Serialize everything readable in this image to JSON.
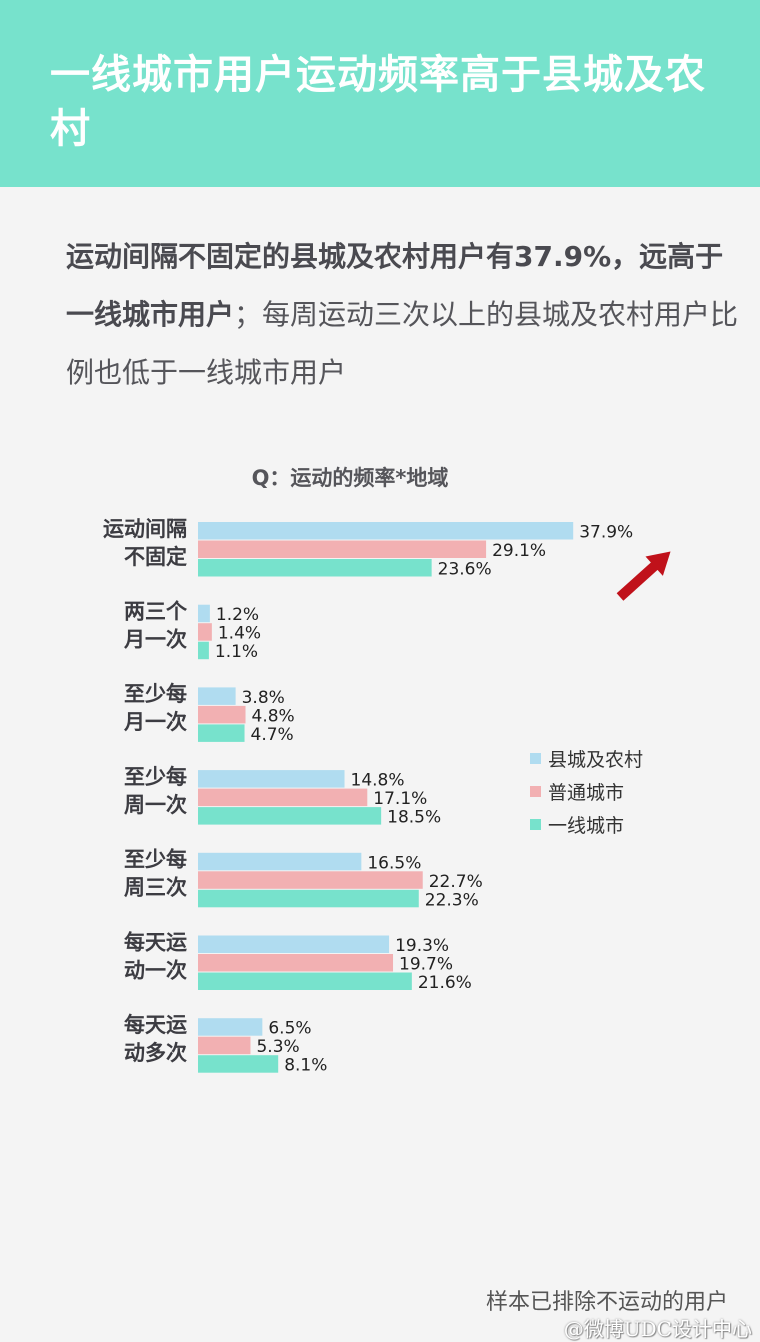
{
  "header": {
    "title": "一线城市用户运动频率高于县城及农村"
  },
  "summary": {
    "bold": "运动间隔不固定的县城及农村用户有37.9%，远高于一线城市用户",
    "normal": "；每周运动三次以上的县城及农村用户比例也低于一线城市用户"
  },
  "footnote": "样本已排除不运动的用户",
  "watermark": "@微博UDC设计中心",
  "colors": {
    "county": "#b0dcf0",
    "normal": "#f2b0b2",
    "tier1": "#77e2cc",
    "arrow": "#c0111a"
  },
  "chart_data": {
    "type": "bar",
    "orientation": "horizontal",
    "title": "Q：运动的频率*地域",
    "categories": [
      [
        "运动间隔",
        "不固定"
      ],
      [
        "两三个",
        "月一次"
      ],
      [
        "至少每",
        "月一次"
      ],
      [
        "至少每",
        "周一次"
      ],
      [
        "至少每",
        "周三次"
      ],
      [
        "每天运",
        "动一次"
      ],
      [
        "每天运",
        "动多次"
      ]
    ],
    "series": [
      {
        "name": "县城及农村",
        "color": "#b0dcf0",
        "values": [
          37.9,
          1.2,
          3.8,
          14.8,
          16.5,
          19.3,
          6.5
        ]
      },
      {
        "name": "普通城市",
        "color": "#f2b0b2",
        "values": [
          29.1,
          1.4,
          4.8,
          17.1,
          22.7,
          19.7,
          5.3
        ]
      },
      {
        "name": "一线城市",
        "color": "#77e2cc",
        "values": [
          23.6,
          1.1,
          4.7,
          18.5,
          22.3,
          21.6,
          8.1
        ]
      }
    ],
    "value_suffix": "%",
    "xlim": [
      0,
      40
    ],
    "grid": false,
    "legend": "right"
  }
}
